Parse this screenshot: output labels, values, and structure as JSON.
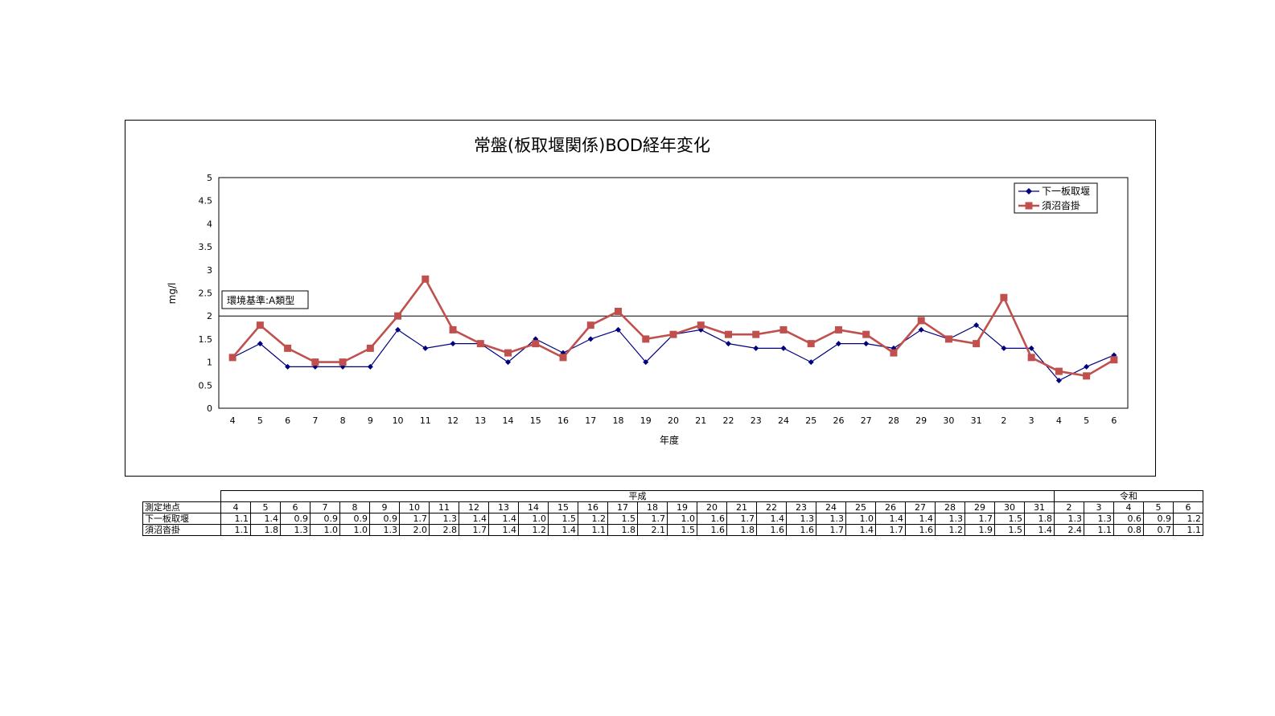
{
  "chart_data": {
    "type": "line",
    "title": "常盤(板取堰関係)BOD経年変化",
    "xlabel": "年度",
    "ylabel": "mg/l",
    "ylim": [
      0,
      5
    ],
    "yticks": [
      "0",
      "0.5",
      "1",
      "1.5",
      "2",
      "2.5",
      "3",
      "3.5",
      "4",
      "4.5",
      "5"
    ],
    "categories": [
      "4",
      "5",
      "6",
      "7",
      "8",
      "9",
      "10",
      "11",
      "12",
      "13",
      "14",
      "15",
      "16",
      "17",
      "18",
      "19",
      "20",
      "21",
      "22",
      "23",
      "24",
      "25",
      "26",
      "27",
      "28",
      "29",
      "30",
      "31",
      "2",
      "3",
      "4",
      "5",
      "6"
    ],
    "series": [
      {
        "name": "下一板取堰",
        "color": "#000080",
        "marker": "diamond",
        "values": [
          1.1,
          1.4,
          0.9,
          0.9,
          0.9,
          0.9,
          1.7,
          1.3,
          1.4,
          1.4,
          1.0,
          1.5,
          1.2,
          1.5,
          1.7,
          1.0,
          1.6,
          1.7,
          1.4,
          1.3,
          1.3,
          1.0,
          1.4,
          1.4,
          1.3,
          1.7,
          1.5,
          1.8,
          1.3,
          1.3,
          0.6,
          0.9,
          1.15
        ]
      },
      {
        "name": "須沼沓掛",
        "color": "#C0504D",
        "marker": "square",
        "values": [
          1.1,
          1.8,
          1.3,
          1.0,
          1.0,
          1.3,
          2.0,
          2.8,
          1.7,
          1.4,
          1.2,
          1.4,
          1.1,
          1.8,
          2.1,
          1.5,
          1.6,
          1.8,
          1.6,
          1.6,
          1.7,
          1.4,
          1.7,
          1.6,
          1.2,
          1.9,
          1.5,
          1.4,
          2.4,
          1.1,
          0.8,
          0.7,
          1.05
        ]
      }
    ],
    "reference_line": {
      "value": 2,
      "label": "環境基準:A類型"
    },
    "legend_position": "top-right",
    "grid": false
  },
  "table": {
    "era_heisei": "平成",
    "era_reiwa": "令和",
    "header_label": "測定地点",
    "years_heisei": [
      "4",
      "5",
      "6",
      "7",
      "8",
      "9",
      "10",
      "11",
      "12",
      "13",
      "14",
      "15",
      "16",
      "17",
      "18",
      "19",
      "20",
      "21",
      "22",
      "23",
      "24",
      "25",
      "26",
      "27",
      "28",
      "29",
      "30",
      "31"
    ],
    "years_reiwa": [
      "2",
      "3",
      "4",
      "5",
      "6"
    ],
    "rows": [
      {
        "label": "下一板取堰",
        "values": [
          "1.1",
          "1.4",
          "0.9",
          "0.9",
          "0.9",
          "0.9",
          "1.7",
          "1.3",
          "1.4",
          "1.4",
          "1.0",
          "1.5",
          "1.2",
          "1.5",
          "1.7",
          "1.0",
          "1.6",
          "1.7",
          "1.4",
          "1.3",
          "1.3",
          "1.0",
          "1.4",
          "1.4",
          "1.3",
          "1.7",
          "1.5",
          "1.8",
          "1.3",
          "1.3",
          "0.6",
          "0.9",
          "1.2"
        ]
      },
      {
        "label": "須沼沓掛",
        "values": [
          "1.1",
          "1.8",
          "1.3",
          "1.0",
          "1.0",
          "1.3",
          "2.0",
          "2.8",
          "1.7",
          "1.4",
          "1.2",
          "1.4",
          "1.1",
          "1.8",
          "2.1",
          "1.5",
          "1.6",
          "1.8",
          "1.6",
          "1.6",
          "1.7",
          "1.4",
          "1.7",
          "1.6",
          "1.2",
          "1.9",
          "1.5",
          "1.4",
          "2.4",
          "1.1",
          "0.8",
          "0.7",
          "1.1"
        ]
      }
    ]
  }
}
